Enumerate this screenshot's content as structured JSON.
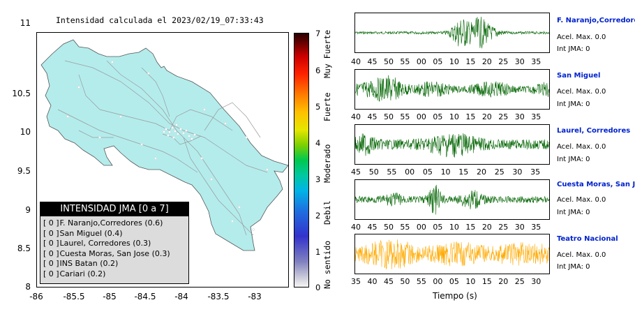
{
  "map": {
    "title": "Intensidad calculada el 2023/02/19_07:33:43",
    "y_ticks": [
      "11",
      "10.5",
      "10",
      "9.5",
      "9",
      "8.5",
      "8"
    ],
    "x_ticks": [
      "-86",
      "-85.5",
      "-85",
      "-84.5",
      "-84",
      "-83.5",
      "-83"
    ],
    "land_color": "#b4ecec",
    "road_color": "#9a9a9a"
  },
  "colorbar": {
    "ticks": [
      "7",
      "6",
      "5",
      "4",
      "3",
      "2",
      "1",
      "0"
    ],
    "words": [
      "Muy Fuerte",
      "Fuerte",
      "Moderado",
      "Debil",
      "No sentido"
    ]
  },
  "legend": {
    "title": "INTENSIDAD JMA [0 a 7]",
    "rows": [
      {
        "box": "[ 0 ]",
        "text": "F. Naranjo,Corredores (0.6)"
      },
      {
        "box": "[ 0 ]",
        "text": "San Miguel (0.4)"
      },
      {
        "box": "[ 0 ]",
        "text": "Laurel, Corredores (0.3)"
      },
      {
        "box": "[ 0 ]",
        "text": "Cuesta Moras, San Jose (0.3)"
      },
      {
        "box": "[ 0 ]",
        "text": "INS Batan (0.2)"
      },
      {
        "box": "[ 0 ]",
        "text": "Cariari (0.2)"
      }
    ]
  },
  "stations": [
    {
      "name": "F. Naranjo,Corredores",
      "accel": "Acel. Max. 0.0",
      "jma": "Int JMA: 0",
      "color": "#006400",
      "ticks": [
        "40",
        "45",
        "50",
        "55",
        "00",
        "05",
        "10",
        "15",
        "20",
        "25",
        "30",
        "35"
      ]
    },
    {
      "name": "San Miguel",
      "accel": "Acel. Max. 0.0",
      "jma": "Int JMA: 0",
      "color": "#006400",
      "ticks": [
        "40",
        "45",
        "50",
        "55",
        "00",
        "05",
        "10",
        "15",
        "20",
        "25",
        "30",
        "35"
      ]
    },
    {
      "name": "Laurel, Corredores",
      "accel": "Acel. Max. 0.0",
      "jma": "Int JMA: 0",
      "color": "#006400",
      "ticks": [
        "45",
        "50",
        "55",
        "00",
        "05",
        "10",
        "15",
        "20",
        "25",
        "30",
        "35"
      ]
    },
    {
      "name": "Cuesta Moras, San Jose",
      "accel": "Acel. Max. 0.0",
      "jma": "Int JMA: 0",
      "color": "#006400",
      "ticks": [
        "40",
        "45",
        "50",
        "55",
        "00",
        "05",
        "10",
        "15",
        "20",
        "25",
        "30",
        "35"
      ]
    },
    {
      "name": "Teatro Nacional",
      "accel": "Acel. Max. 0.0",
      "jma": "Int JMA: 0",
      "color": "#ffaa00",
      "ticks": [
        "35",
        "40",
        "45",
        "50",
        "55",
        "00",
        "05",
        "10",
        "15",
        "20",
        "25",
        "30"
      ]
    }
  ],
  "xaxis_label": "Tiempo (s)"
}
